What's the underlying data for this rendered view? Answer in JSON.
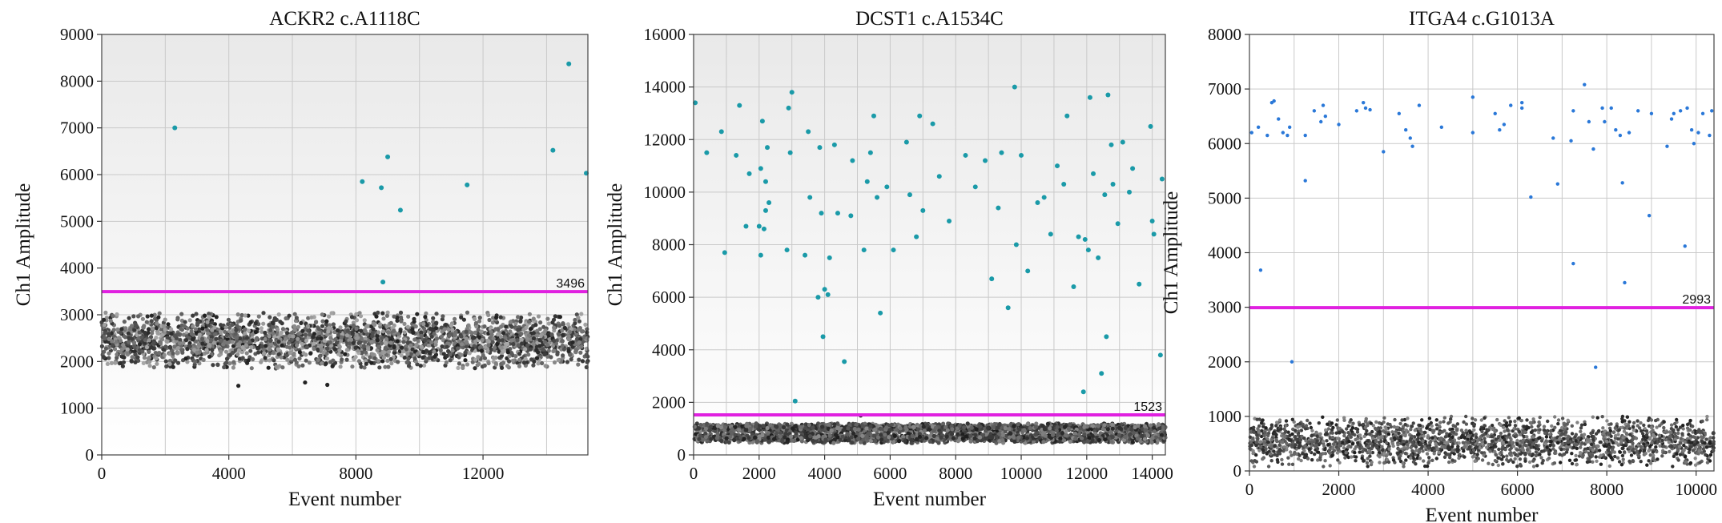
{
  "chart_data": [
    {
      "type": "scatter",
      "title": "ACKR2 c.A1118C",
      "xlabel": "Event number",
      "ylabel": "Ch1 Amplitude",
      "xlim": [
        0,
        15300
      ],
      "ylim": [
        0,
        9000
      ],
      "xticks": [
        0,
        4000,
        8000,
        12000
      ],
      "yticks": [
        0,
        1000,
        2000,
        3000,
        4000,
        5000,
        6000,
        7000,
        8000,
        9000
      ],
      "xtick_labels": [
        "0",
        "4000",
        "8000",
        "12000"
      ],
      "ytick_labels": [
        "0",
        "1000",
        "2000",
        "3000",
        "4000",
        "5000",
        "6000",
        "7000",
        "8000",
        "9000"
      ],
      "grid": true,
      "threshold": 3496,
      "threshold_label": "3496",
      "threshold_color": "#e020e0",
      "positive_color": "#1a9aa8",
      "negative_color": "#333333",
      "background_gradient": [
        "#e9e9e9",
        "#ffffff"
      ],
      "positive_droplets": [
        [
          2300,
          7000
        ],
        [
          8200,
          5850
        ],
        [
          8800,
          5720
        ],
        [
          8850,
          3700
        ],
        [
          9000,
          6380
        ],
        [
          9400,
          5240
        ],
        [
          11500,
          5780
        ],
        [
          14200,
          6520
        ],
        [
          14700,
          8370
        ],
        [
          15250,
          6030
        ]
      ],
      "negative_band": {
        "events": 15300,
        "ymin": 1850,
        "ymax": 3050
      },
      "negative_outliers": [
        [
          4300,
          1480
        ],
        [
          6400,
          1550
        ],
        [
          7100,
          1500
        ]
      ]
    },
    {
      "type": "scatter",
      "title": "DCST1 c.A1534C",
      "xlabel": "Event number",
      "ylabel": "Ch1 Amplitude",
      "xlim": [
        0,
        14400
      ],
      "ylim": [
        0,
        16000
      ],
      "xticks": [
        0,
        2000,
        4000,
        6000,
        8000,
        10000,
        12000,
        14000
      ],
      "yticks": [
        0,
        2000,
        4000,
        6000,
        8000,
        10000,
        12000,
        14000,
        16000
      ],
      "xtick_labels": [
        "0",
        "2000",
        "4000",
        "6000",
        "8000",
        "10000",
        "12000",
        "14000"
      ],
      "ytick_labels": [
        "0",
        "2000",
        "4000",
        "6000",
        "8000",
        "10000",
        "12000",
        "14000",
        "16000"
      ],
      "grid": true,
      "threshold": 1523,
      "threshold_label": "1523",
      "threshold_color": "#e020e0",
      "positive_color": "#1a9aa8",
      "negative_color": "#333333",
      "background_gradient": [
        "#e9e9e9",
        "#ffffff"
      ],
      "positive_droplets": [
        [
          50,
          13400
        ],
        [
          400,
          11500
        ],
        [
          850,
          12300
        ],
        [
          1300,
          11400
        ],
        [
          1400,
          13300
        ],
        [
          1600,
          8700
        ],
        [
          1700,
          10700
        ],
        [
          950,
          7700
        ],
        [
          2000,
          8700
        ],
        [
          2050,
          7600
        ],
        [
          2050,
          10900
        ],
        [
          2100,
          12700
        ],
        [
          2150,
          8600
        ],
        [
          2200,
          9300
        ],
        [
          2200,
          10400
        ],
        [
          2250,
          11700
        ],
        [
          2300,
          9600
        ],
        [
          2850,
          7800
        ],
        [
          2900,
          13200
        ],
        [
          2950,
          11500
        ],
        [
          3000,
          13800
        ],
        [
          3100,
          2050
        ],
        [
          3400,
          7600
        ],
        [
          3500,
          12300
        ],
        [
          3550,
          9800
        ],
        [
          3800,
          6000
        ],
        [
          3850,
          11700
        ],
        [
          3900,
          9200
        ],
        [
          3950,
          4500
        ],
        [
          4000,
          6300
        ],
        [
          4100,
          6100
        ],
        [
          4150,
          7500
        ],
        [
          4300,
          11800
        ],
        [
          4400,
          9200
        ],
        [
          4600,
          3550
        ],
        [
          4800,
          9100
        ],
        [
          4850,
          11200
        ],
        [
          5200,
          7800
        ],
        [
          5300,
          10400
        ],
        [
          5400,
          11500
        ],
        [
          5500,
          12900
        ],
        [
          5600,
          9800
        ],
        [
          5700,
          5400
        ],
        [
          5900,
          10200
        ],
        [
          6100,
          7800
        ],
        [
          6500,
          11900
        ],
        [
          6600,
          9900
        ],
        [
          6800,
          8300
        ],
        [
          6900,
          12900
        ],
        [
          7000,
          9300
        ],
        [
          7300,
          12600
        ],
        [
          7500,
          10600
        ],
        [
          7800,
          8900
        ],
        [
          8300,
          11400
        ],
        [
          8600,
          10200
        ],
        [
          8900,
          11200
        ],
        [
          9100,
          6700
        ],
        [
          9300,
          9400
        ],
        [
          9400,
          11500
        ],
        [
          9600,
          5600
        ],
        [
          9800,
          14000
        ],
        [
          9850,
          8000
        ],
        [
          10000,
          11400
        ],
        [
          10200,
          7000
        ],
        [
          10500,
          9600
        ],
        [
          10700,
          9800
        ],
        [
          10900,
          8400
        ],
        [
          11100,
          11000
        ],
        [
          11300,
          10300
        ],
        [
          11400,
          12900
        ],
        [
          11600,
          6400
        ],
        [
          11750,
          8300
        ],
        [
          11900,
          2400
        ],
        [
          11950,
          8200
        ],
        [
          12050,
          7800
        ],
        [
          12100,
          13600
        ],
        [
          12200,
          10700
        ],
        [
          12350,
          7500
        ],
        [
          12450,
          3100
        ],
        [
          12550,
          9900
        ],
        [
          12600,
          4500
        ],
        [
          12650,
          13700
        ],
        [
          12750,
          11800
        ],
        [
          12800,
          10300
        ],
        [
          12950,
          8800
        ],
        [
          13100,
          11900
        ],
        [
          13300,
          10000
        ],
        [
          13400,
          10900
        ],
        [
          13600,
          6500
        ],
        [
          13950,
          12500
        ],
        [
          14000,
          8900
        ],
        [
          14050,
          8400
        ],
        [
          14250,
          3800
        ],
        [
          14300,
          10500
        ]
      ],
      "negative_bands": [
        {
          "events": 14400,
          "ymin": 850,
          "ymax": 1200
        },
        {
          "events": 14400,
          "ymin": 450,
          "ymax": 850
        }
      ],
      "negative_outliers": [
        [
          5100,
          1500
        ]
      ]
    },
    {
      "type": "scatter",
      "title": "ITGA4 c.G1013A",
      "xlabel": "Event number",
      "ylabel": "Ch1 Amplitude",
      "xlim": [
        0,
        10400
      ],
      "ylim": [
        0,
        8000
      ],
      "xticks": [
        0,
        2000,
        4000,
        6000,
        8000,
        10000
      ],
      "yticks": [
        0,
        1000,
        2000,
        3000,
        4000,
        5000,
        6000,
        7000,
        8000
      ],
      "xtick_labels": [
        "0",
        "2000",
        "4000",
        "6000",
        "8000",
        "10000"
      ],
      "ytick_labels": [
        "0",
        "1000",
        "2000",
        "3000",
        "4000",
        "5000",
        "6000",
        "7000",
        "8000"
      ],
      "grid": true,
      "threshold": 2993,
      "threshold_label": "2993",
      "threshold_color": "#e020e0",
      "positive_color": "#2a78d8",
      "negative_color": "#555555",
      "background_gradient": [
        "#ffffff",
        "#ffffff"
      ],
      "positive_droplets": [
        [
          50,
          6200
        ],
        [
          200,
          6300
        ],
        [
          250,
          3680
        ],
        [
          400,
          6150
        ],
        [
          500,
          6750
        ],
        [
          550,
          6780
        ],
        [
          650,
          6450
        ],
        [
          750,
          6200
        ],
        [
          850,
          6150
        ],
        [
          900,
          6300
        ],
        [
          950,
          2000
        ],
        [
          1250,
          6150
        ],
        [
          1250,
          5320
        ],
        [
          1450,
          6600
        ],
        [
          1600,
          6400
        ],
        [
          1650,
          6700
        ],
        [
          1700,
          6500
        ],
        [
          2000,
          6350
        ],
        [
          2400,
          6600
        ],
        [
          2550,
          6750
        ],
        [
          2600,
          6650
        ],
        [
          2700,
          6620
        ],
        [
          3000,
          5850
        ],
        [
          3350,
          6550
        ],
        [
          3500,
          6250
        ],
        [
          3600,
          6100
        ],
        [
          3650,
          5950
        ],
        [
          3800,
          6700
        ],
        [
          4300,
          6300
        ],
        [
          5000,
          6850
        ],
        [
          5000,
          6200
        ],
        [
          5500,
          6550
        ],
        [
          5600,
          6250
        ],
        [
          5700,
          6350
        ],
        [
          5850,
          6700
        ],
        [
          6100,
          6750
        ],
        [
          6100,
          6650
        ],
        [
          6300,
          5020
        ],
        [
          6800,
          6100
        ],
        [
          6900,
          5260
        ],
        [
          7200,
          6050
        ],
        [
          7250,
          6600
        ],
        [
          7250,
          3800
        ],
        [
          7500,
          7080
        ],
        [
          7600,
          6400
        ],
        [
          7700,
          5900
        ],
        [
          7750,
          1900
        ],
        [
          7900,
          6650
        ],
        [
          7950,
          6400
        ],
        [
          8100,
          6650
        ],
        [
          8200,
          6250
        ],
        [
          8300,
          6150
        ],
        [
          8350,
          5280
        ],
        [
          8400,
          3450
        ],
        [
          8500,
          6200
        ],
        [
          8700,
          6600
        ],
        [
          8950,
          4680
        ],
        [
          9000,
          6550
        ],
        [
          9350,
          5950
        ],
        [
          9450,
          6450
        ],
        [
          9500,
          6550
        ],
        [
          9650,
          6600
        ],
        [
          9750,
          4120
        ],
        [
          9800,
          6650
        ],
        [
          9900,
          6250
        ],
        [
          9950,
          6000
        ],
        [
          10050,
          6200
        ],
        [
          10150,
          6550
        ],
        [
          10300,
          6150
        ],
        [
          10350,
          6600
        ]
      ],
      "negative_band": {
        "events": 10400,
        "ymin": 80,
        "ymax": 1000
      }
    }
  ]
}
